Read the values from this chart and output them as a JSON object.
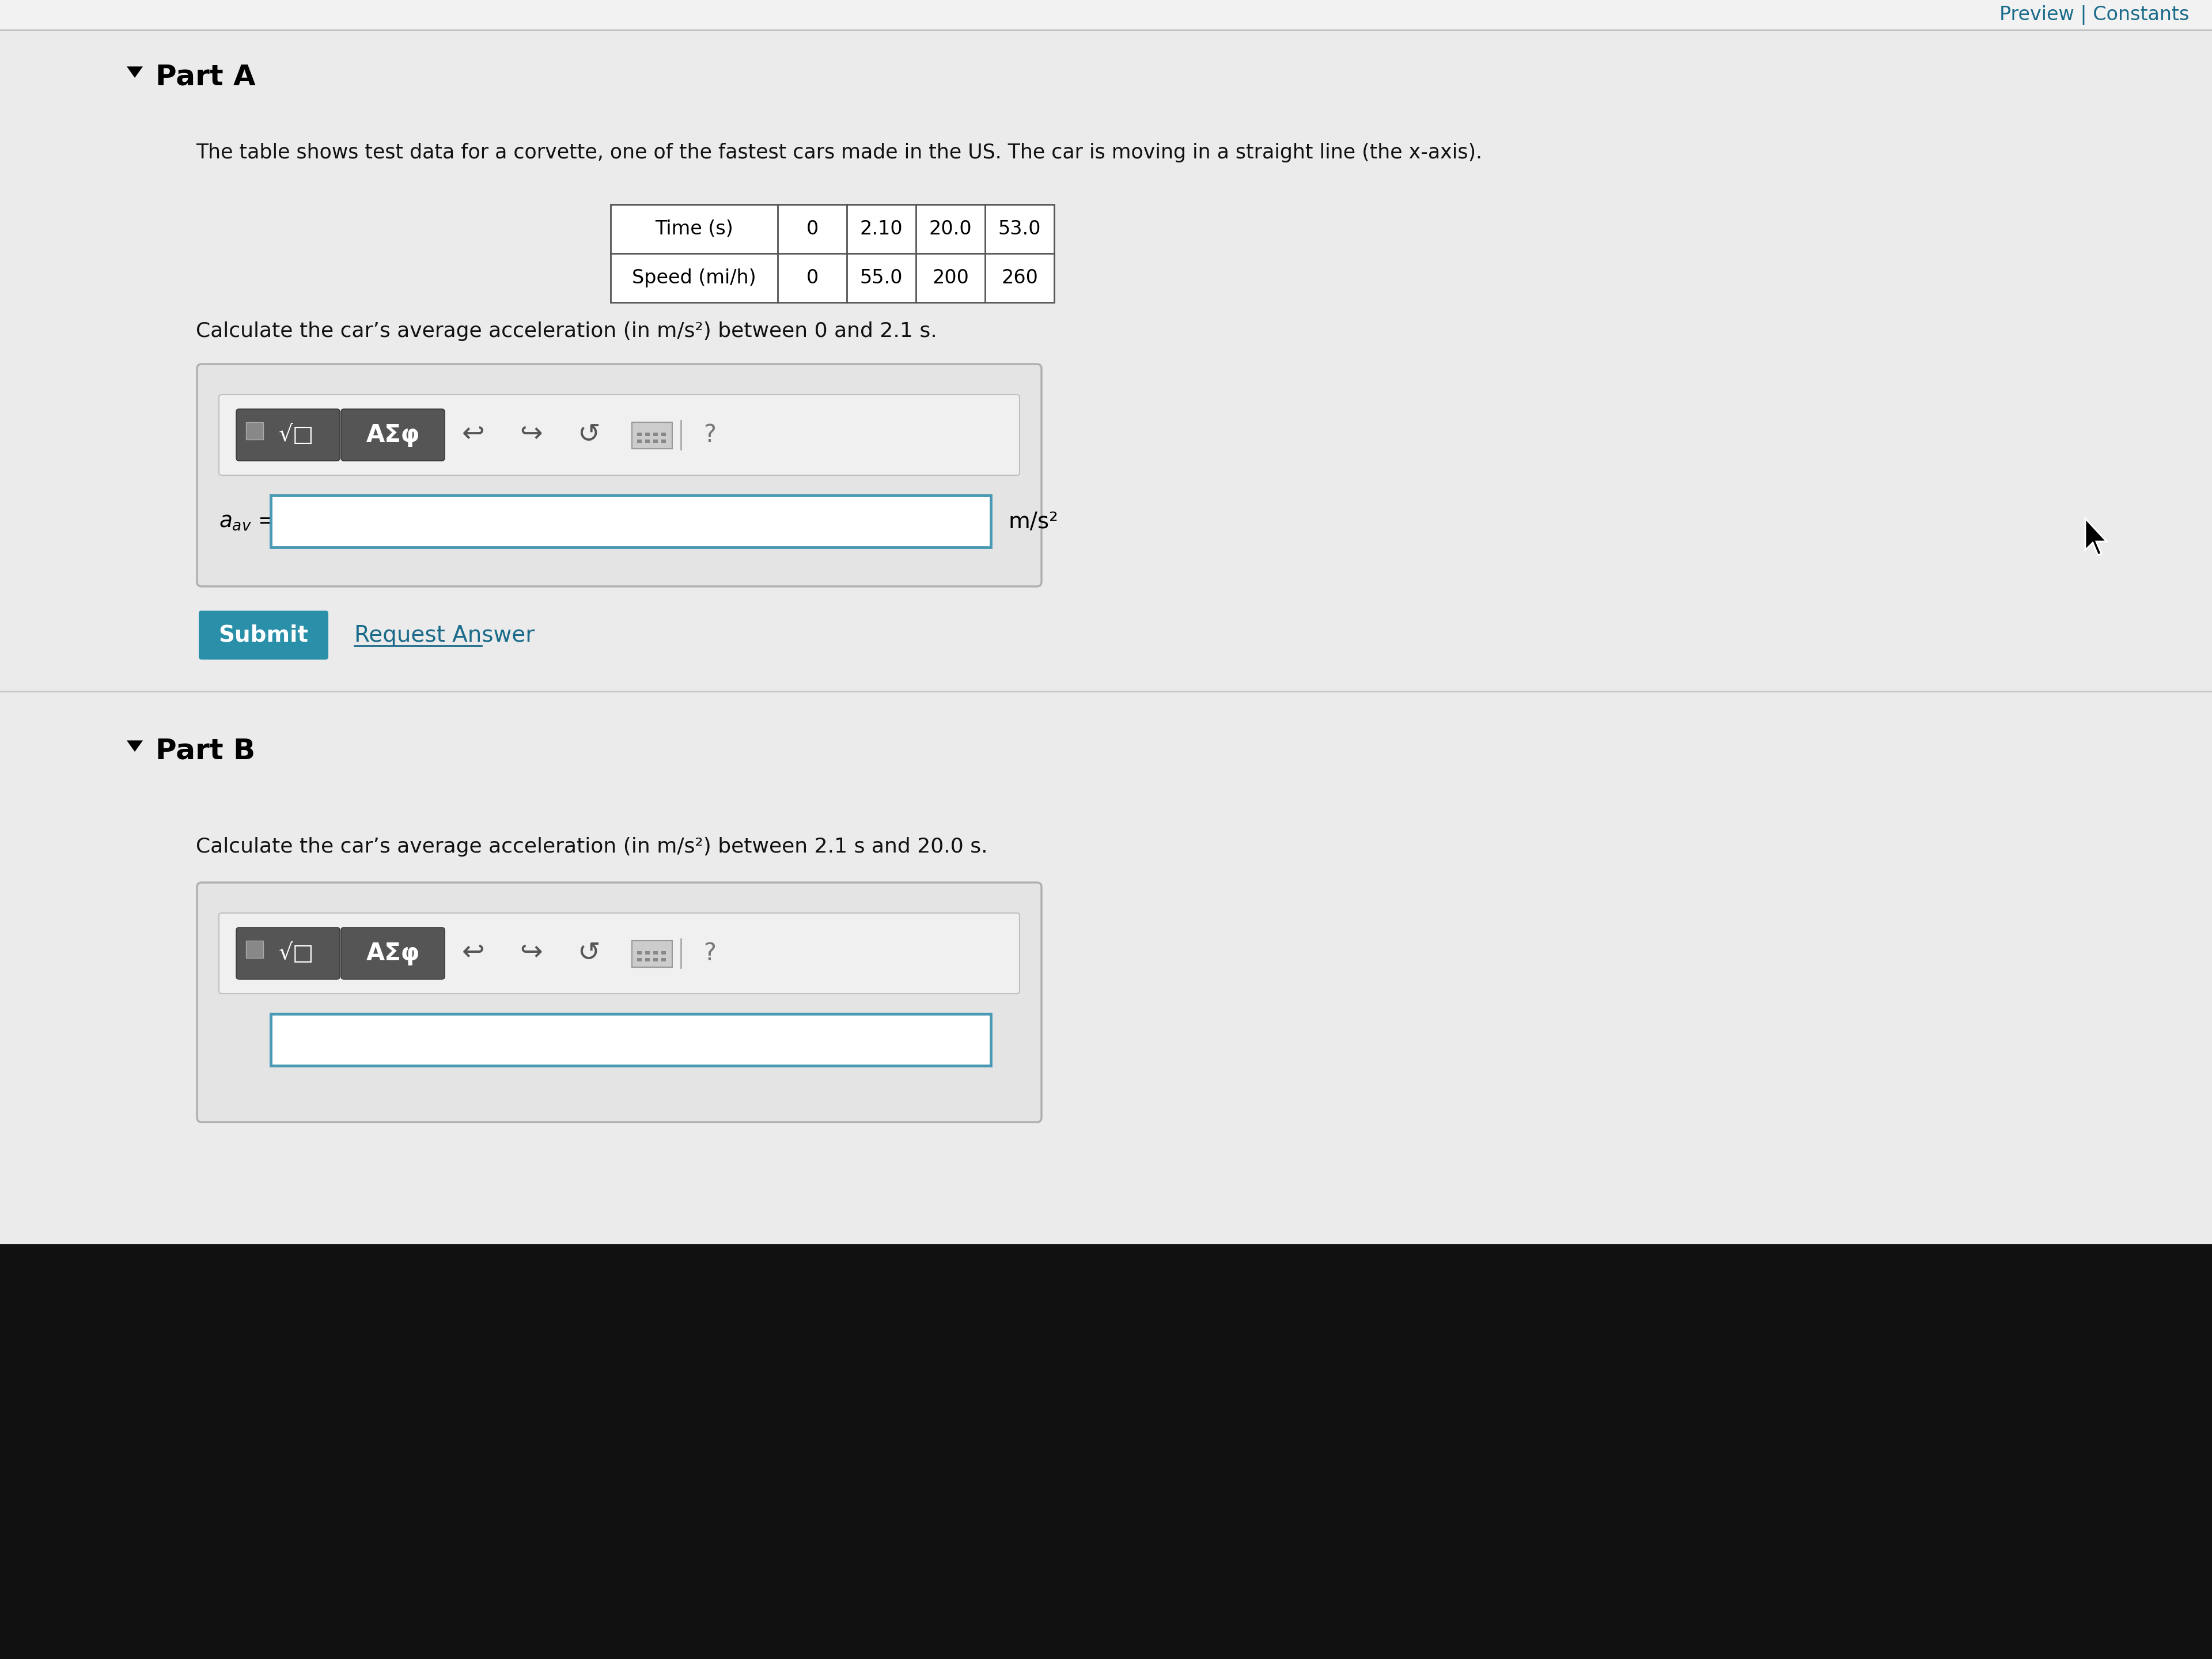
{
  "content_bg": "#ebebeb",
  "top_bar_bg": "#f2f2f2",
  "top_bar_text": "Preview | Constants",
  "top_bar_color": "#1a6b8a",
  "part_a_label": "Part A",
  "part_b_label": "Part B",
  "intro_text": "The table shows test data for a corvette, one of the fastest cars made in the US. The car is moving in a straight line (the x-axis).",
  "time_label": "Time (s)",
  "speed_label": "Speed (mi/h)",
  "time_values": [
    "0",
    "2.10",
    "20.0",
    "53.0"
  ],
  "speed_values": [
    "0",
    "55.0",
    "200",
    "260"
  ],
  "question_a": "Calculate the car’s average acceleration (in m/s²) between 0 and 2.1 s.",
  "question_b": "Calculate the car’s average acceleration (in m/s²) between 2.1 s and 20.0 s.",
  "submit_color": "#2a8fa8",
  "submit_text": "Submit",
  "request_answer_text": "Request Answer",
  "unit_label": "m/s²",
  "dark_bottom": "#111111",
  "box_bg": "#e0e0e0",
  "toolbar_bg": "#efefef",
  "btn_dark": "#555555",
  "input_border": "#4a9ab5",
  "divider_color": "#c8c8c8",
  "link_color": "#1a6b8a"
}
